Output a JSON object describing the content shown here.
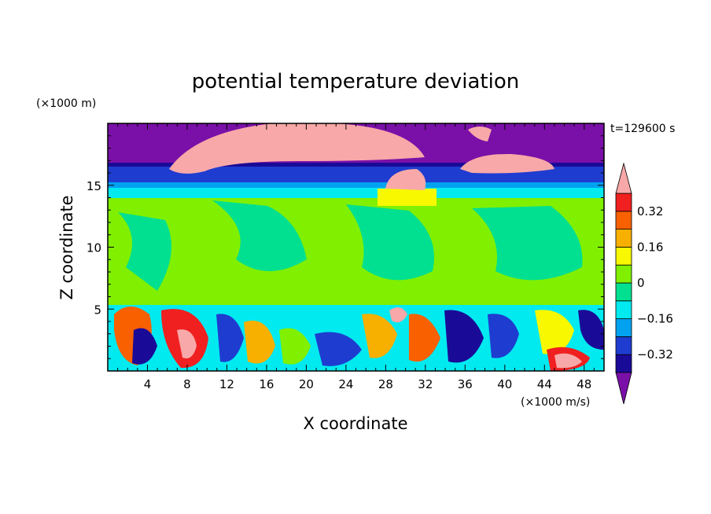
{
  "chart_data": {
    "type": "heatmap",
    "title": "potential temperature deviation",
    "xlabel": "X coordinate",
    "ylabel": "Z coordinate",
    "x_unit": "(×1000 m/s)",
    "y_unit": "(×1000 m)",
    "time_label": "t=129600 s",
    "xlim": [
      0,
      50
    ],
    "ylim": [
      0,
      20
    ],
    "x_ticks": [
      4,
      8,
      12,
      16,
      20,
      24,
      28,
      32,
      36,
      40,
      44,
      48
    ],
    "y_ticks": [
      5,
      10,
      15
    ],
    "colorbar": {
      "levels": [
        -0.4,
        -0.32,
        -0.24,
        -0.16,
        -0.08,
        0,
        0.08,
        0.16,
        0.24,
        0.32,
        0.4
      ],
      "tick_labels": [
        0.32,
        0.16,
        0,
        -0.16,
        -0.32
      ],
      "colors": [
        "#7a10a8",
        "#1a0a98",
        "#1f3cd0",
        "#00a2f0",
        "#00eaf0",
        "#00e090",
        "#80f000",
        "#f8f800",
        "#f8b000",
        "#f86000",
        "#f02020",
        "#f8a8a8"
      ],
      "extend": "both"
    },
    "layers": [
      {
        "z": [
          0,
          5.3
        ],
        "description_level": "mixed",
        "dominant": [
          -0.4,
          0.4
        ]
      },
      {
        "z": [
          5.3,
          14.8
        ],
        "dominant": [
          -0.08,
          0.08
        ]
      },
      {
        "z": [
          14.8,
          16.5
        ],
        "dominant": [
          -0.24,
          -0.08
        ]
      },
      {
        "z": [
          16.5,
          20
        ],
        "dominant": [
          -0.4,
          0.4
        ]
      }
    ]
  }
}
